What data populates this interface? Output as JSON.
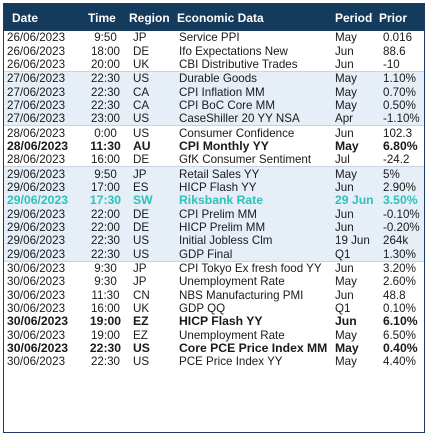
{
  "header": {
    "date": "Date",
    "time": "Time",
    "region": "Region",
    "event": "Economic Data",
    "period": "Period",
    "prior": "Prior"
  },
  "rows": [
    {
      "date": "26/06/2023",
      "time": "9:50",
      "region": "JP",
      "event": "Service PPI",
      "period": "May",
      "prior": "0.016"
    },
    {
      "date": "26/06/2023",
      "time": "18:00",
      "region": "DE",
      "event": "Ifo Expectations New",
      "period": "Jun",
      "prior": "88.6"
    },
    {
      "date": "26/06/2023",
      "time": "20:00",
      "region": "UK",
      "event": "CBI Distributive Trades",
      "period": "Jun",
      "prior": "-10"
    },
    {
      "date": "27/06/2023",
      "time": "22:30",
      "region": "US",
      "event": "Durable Goods",
      "period": "May",
      "prior": "1.10%"
    },
    {
      "date": "27/06/2023",
      "time": "22:30",
      "region": "CA",
      "event": "CPI Inflation MM",
      "period": "May",
      "prior": "0.70%"
    },
    {
      "date": "27/06/2023",
      "time": "22:30",
      "region": "CA",
      "event": "CPI BoC Core MM",
      "period": "May",
      "prior": "0.50%"
    },
    {
      "date": "27/06/2023",
      "time": "23:00",
      "region": "US",
      "event": "CaseShiller 20 YY NSA",
      "period": "Apr",
      "prior": "-1.10%"
    },
    {
      "date": "28/06/2023",
      "time": "0:00",
      "region": "US",
      "event": "Consumer Confidence",
      "period": "Jun",
      "prior": "102.3"
    },
    {
      "date": "28/06/2023",
      "time": "11:30",
      "region": "AU",
      "event": "CPI Monthly YY",
      "period": "May",
      "prior": "6.80%",
      "style": "bold"
    },
    {
      "date": "28/06/2023",
      "time": "16:00",
      "region": "DE",
      "event": "GfK Consumer Sentiment",
      "period": "Jul",
      "prior": "-24.2"
    },
    {
      "date": "29/06/2023",
      "time": "9:50",
      "region": "JP",
      "event": "Retail Sales YY",
      "period": "May",
      "prior": "5%"
    },
    {
      "date": "29/06/2023",
      "time": "17:00",
      "region": "ES",
      "event": "HICP Flash YY",
      "period": "Jun",
      "prior": "2.90%"
    },
    {
      "date": "29/06/2023",
      "time": "17:30",
      "region": "SW",
      "event": "Riksbank Rate",
      "period": "29 Jun",
      "prior": "3.50%",
      "style": "teal"
    },
    {
      "date": "29/06/2023",
      "time": "22:00",
      "region": "DE",
      "event": "CPI Prelim MM",
      "period": "Jun",
      "prior": "-0.10%"
    },
    {
      "date": "29/06/2023",
      "time": "22:00",
      "region": "DE",
      "event": "HICP Prelim MM",
      "period": "Jun",
      "prior": "-0.20%"
    },
    {
      "date": "29/06/2023",
      "time": "22:30",
      "region": "US",
      "event": "Initial Jobless Clm",
      "period": "19 Jun",
      "prior": "264k"
    },
    {
      "date": "29/06/2023",
      "time": "22:30",
      "region": "US",
      "event": "GDP Final",
      "period": "Q1",
      "prior": "1.30%"
    },
    {
      "date": "30/06/2023",
      "time": "9:30",
      "region": "JP",
      "event": "CPI Tokyo Ex fresh food YY",
      "period": "Jun",
      "prior": "3.20%"
    },
    {
      "date": "30/06/2023",
      "time": "9:30",
      "region": "JP",
      "event": "Unemployment Rate",
      "period": "May",
      "prior": "2.60%"
    },
    {
      "date": "30/06/2023",
      "time": "11:30",
      "region": "CN",
      "event": "NBS Manufacturing PMI",
      "period": "Jun",
      "prior": "48.8"
    },
    {
      "date": "30/06/2023",
      "time": "16:00",
      "region": "UK",
      "event": "GDP QQ",
      "period": "Q1",
      "prior": "0.10%"
    },
    {
      "date": "30/06/2023",
      "time": "19:00",
      "region": "EZ",
      "event": "HICP Flash YY",
      "period": "Jun",
      "prior": "6.10%",
      "style": "bold"
    },
    {
      "date": "30/06/2023",
      "time": "19:00",
      "region": "EZ",
      "event": "Unemployment Rate",
      "period": "May",
      "prior": "6.50%"
    },
    {
      "date": "30/06/2023",
      "time": "22:30",
      "region": "US",
      "event": "Core PCE Price Index MM",
      "period": "May",
      "prior": "0.40%",
      "style": "bold"
    },
    {
      "date": "30/06/2023",
      "time": "22:30",
      "region": "US",
      "event": "PCE Price Index YY",
      "period": "May",
      "prior": "4.40%"
    }
  ],
  "colors": {
    "header_bg": "#143a5c",
    "header_text": "#ffffff",
    "stripe_bg": "#e6eef7",
    "highlight_teal": "#2ec2b8",
    "text": "#1a1a1a"
  }
}
